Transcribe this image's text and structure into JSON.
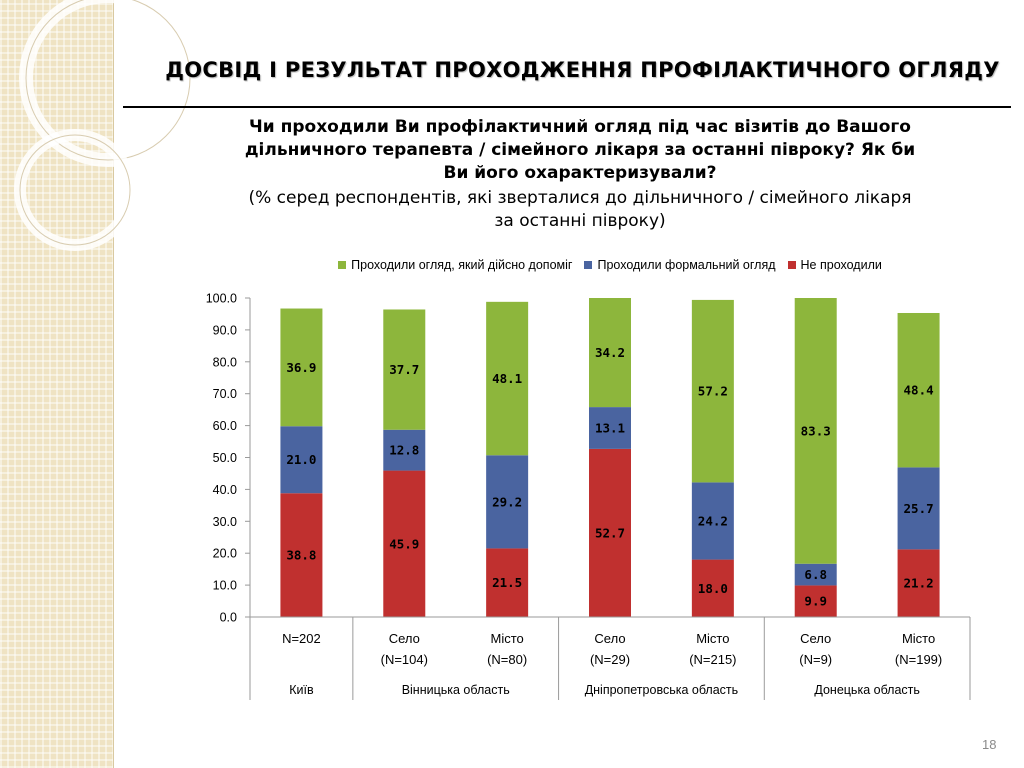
{
  "slide": {
    "title": "ДОСВІД І РЕЗУЛЬТАТ ПРОХОДЖЕННЯ ПРОФІЛАКТИЧНОГО ОГЛЯДУ",
    "question_line1": "Чи проходили Ви профілактичний огляд під час візитів до Вашого",
    "question_line2": "дільничного терапевта / сімейного лікаря за останні півроку? Як би",
    "question_line3": "Ви його охарактеризували?",
    "subtitle_line1": "(% серед респондентів, які зверталися до дільничного / сімейного лікаря",
    "subtitle_line2": "за останні півроку)",
    "page_number": "18"
  },
  "colors": {
    "green": "#8db63c",
    "blue": "#4a64a0",
    "red": "#c0302f",
    "grid": "#bfbfbf",
    "text": "#000000"
  },
  "chart_data": {
    "type": "bar",
    "stacked": true,
    "ylim": [
      0,
      100
    ],
    "y_ticks": [
      "100.0",
      "90.0",
      "80.0",
      "70.0",
      "60.0",
      "50.0",
      "40.0",
      "30.0",
      "20.0",
      "10.0",
      "0.0"
    ],
    "grid": false,
    "legend_position": "top",
    "categories": [
      {
        "line1": "N=202",
        "line2": ""
      },
      {
        "line1": "Село",
        "line2": "(N=104)"
      },
      {
        "line1": "Місто",
        "line2": "(N=80)"
      },
      {
        "line1": "Село",
        "line2": "(N=29)"
      },
      {
        "line1": "Місто",
        "line2": "(N=215)"
      },
      {
        "line1": "Село",
        "line2": "(N=9)"
      },
      {
        "line1": "Місто",
        "line2": "(N=199)"
      }
    ],
    "groups": [
      {
        "label": "Київ",
        "count": 1
      },
      {
        "label": "Вінницька область",
        "count": 2
      },
      {
        "label": "Дніпропетровська область",
        "count": 2
      },
      {
        "label": "Донецька область",
        "count": 2
      }
    ],
    "series": [
      {
        "name": "Не проходили",
        "color": "#c0302f",
        "values": [
          38.8,
          45.9,
          21.5,
          52.7,
          18.0,
          9.9,
          21.2
        ],
        "labels": [
          "38.8",
          "45.9",
          "21.5",
          "52.7",
          "18.0",
          "9.9",
          "21.2"
        ]
      },
      {
        "name": "Проходили формальний огляд",
        "color": "#4a64a0",
        "values": [
          21.0,
          12.8,
          29.2,
          13.1,
          24.2,
          6.8,
          25.7
        ],
        "labels": [
          "21.0",
          "12.8",
          "29.2",
          "13.1",
          "24.2",
          "6.8",
          "25.7"
        ]
      },
      {
        "name": "Проходили огляд, який дійсно допоміг",
        "color": "#8db63c",
        "values": [
          36.9,
          37.7,
          48.1,
          34.2,
          57.2,
          83.3,
          48.4
        ],
        "labels": [
          "36.9",
          "37.7",
          "48.1",
          "34.2",
          "57.2",
          "83.3",
          "48.4"
        ]
      }
    ],
    "legend_order": [
      "Проходили огляд, який дійсно допоміг",
      "Проходили формальний огляд",
      "Не проходили"
    ]
  }
}
